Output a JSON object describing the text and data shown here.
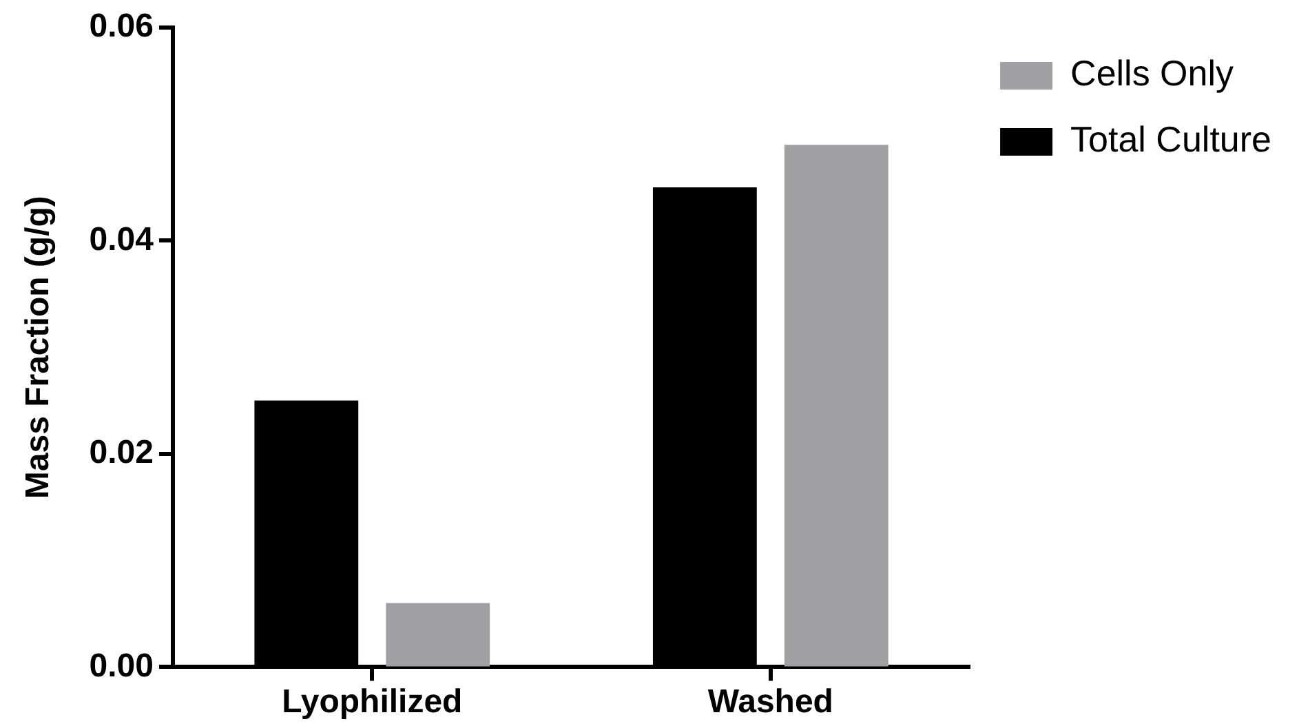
{
  "chart_data": {
    "type": "bar",
    "ylabel": "Mass Fraction (g/g)",
    "categories": [
      "Lyophilized",
      "Washed"
    ],
    "series": [
      {
        "name": "Total Culture",
        "color": "#000000",
        "values": [
          0.025,
          0.045
        ]
      },
      {
        "name": "Cells Only",
        "color": "#a0a0a2",
        "values": [
          0.006,
          0.049
        ]
      }
    ],
    "ylim": [
      0,
      0.06
    ],
    "yticks": [
      {
        "value": 0,
        "label": "0.00"
      },
      {
        "value": 0.02,
        "label": "0.02"
      },
      {
        "value": 0.04,
        "label": "0.04"
      },
      {
        "value": 0.06,
        "label": "0.06"
      }
    ],
    "grid": false,
    "legend": "top right"
  }
}
